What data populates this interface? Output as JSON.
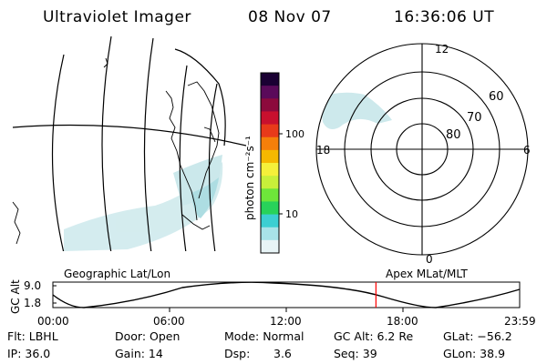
{
  "header": {
    "instrument": "Ultraviolet Imager",
    "date": "08 Nov 07",
    "time": "16:36:06 UT"
  },
  "colorbar": {
    "label": "photon cm⁻²s⁻¹",
    "ticks": [
      "100",
      "10"
    ],
    "scale": "log",
    "colors": [
      "#1a0033",
      "#5a0a5a",
      "#8c0a3c",
      "#c8102e",
      "#e83a1a",
      "#f57f0a",
      "#f5b800",
      "#f5f03a",
      "#c8f03a",
      "#6ee63a",
      "#28d25a",
      "#3ccfd2",
      "#a8e3e8",
      "#e8f4f6"
    ]
  },
  "polar_plot": {
    "lat_labels": [
      "60",
      "70",
      "80"
    ],
    "mlt_labels": [
      "12",
      "18",
      "6",
      "0"
    ]
  },
  "map_labels": {
    "left": "Geographic Lat/Lon",
    "right": "Apex MLat/MLT"
  },
  "altitude_plot": {
    "ylabel": "GC Alt",
    "yticks": [
      "9.0",
      "1.8"
    ],
    "xticks": [
      "00:00",
      "06:00",
      "12:00",
      "18:00",
      "23:59"
    ],
    "current_time_marker": "16:36",
    "marker_color": "#ff0000"
  },
  "status": {
    "flt": "Flt: LBHL",
    "ip": "IP: 36.0",
    "door": "Door: Open",
    "gain": "Gain: 14",
    "mode": "Mode: Normal",
    "dsp_label": "Dsp:",
    "dsp_value": "3.6",
    "gc_alt": "GC Alt: 6.2 Re",
    "seq": "Seq: 39",
    "glat": "GLat: −56.2",
    "glon": "GLon: 38.9"
  }
}
